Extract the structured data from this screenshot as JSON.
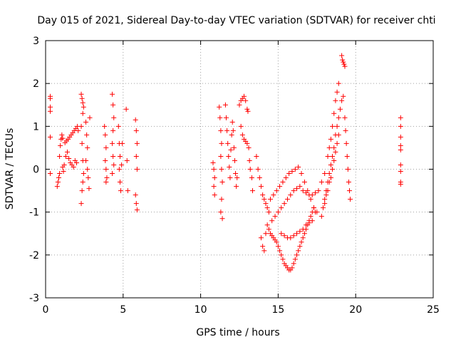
{
  "chart_data": {
    "type": "scatter",
    "title": "Day 015 of 2021, Sidereal Day-to-day VTEC variation (SDTVAR) for receiver chti",
    "xlabel": "GPS time / hours",
    "ylabel": "SDTVAR / TECUs",
    "xlim": [
      0,
      25
    ],
    "ylim": [
      -3,
      3
    ],
    "xticks": [
      0,
      5,
      10,
      15,
      20,
      25
    ],
    "yticks": [
      -3,
      -2,
      -1,
      0,
      1,
      2,
      3
    ],
    "xtick_labels": [
      "0",
      "5",
      "10",
      "15",
      "20",
      "25"
    ],
    "ytick_labels": [
      "-3",
      "-2",
      "-1",
      "0",
      "1",
      "2",
      "3"
    ],
    "grid": true,
    "marker": "+",
    "color": "#ff0000",
    "series": [
      {
        "name": "SDTVAR",
        "points": [
          [
            0.3,
            1.7
          ],
          [
            0.3,
            1.65
          ],
          [
            0.3,
            1.45
          ],
          [
            0.3,
            1.35
          ],
          [
            0.3,
            0.75
          ],
          [
            0.3,
            -0.1
          ],
          [
            0.75,
            -0.4
          ],
          [
            0.8,
            -0.3
          ],
          [
            0.85,
            -0.2
          ],
          [
            0.9,
            -0.1
          ],
          [
            0.9,
            0.3
          ],
          [
            0.95,
            0.55
          ],
          [
            1.0,
            0.7
          ],
          [
            1.05,
            0.8
          ],
          [
            1.1,
            0.72
          ],
          [
            1.1,
            0.05
          ],
          [
            1.15,
            -0.05
          ],
          [
            1.2,
            0.1
          ],
          [
            1.25,
            0.62
          ],
          [
            1.3,
            0.3
          ],
          [
            1.35,
            0.66
          ],
          [
            1.4,
            0.4
          ],
          [
            1.45,
            0.7
          ],
          [
            1.5,
            0.25
          ],
          [
            1.55,
            0.75
          ],
          [
            1.6,
            0.15
          ],
          [
            1.65,
            0.8
          ],
          [
            1.7,
            0.1
          ],
          [
            1.75,
            0.85
          ],
          [
            1.8,
            0.05
          ],
          [
            1.85,
            0.9
          ],
          [
            1.9,
            0.2
          ],
          [
            1.95,
            0.95
          ],
          [
            2.0,
            0.15
          ],
          [
            2.05,
            1.0
          ],
          [
            2.1,
            0.9
          ],
          [
            2.3,
            1.75
          ],
          [
            2.35,
            1.65
          ],
          [
            2.4,
            1.55
          ],
          [
            2.45,
            1.45
          ],
          [
            2.4,
            1.3
          ],
          [
            2.3,
            1.0
          ],
          [
            2.35,
            0.6
          ],
          [
            2.4,
            0.2
          ],
          [
            2.45,
            -0.1
          ],
          [
            2.4,
            -0.3
          ],
          [
            2.35,
            -0.5
          ],
          [
            2.3,
            -0.8
          ],
          [
            2.6,
            1.1
          ],
          [
            2.65,
            0.8
          ],
          [
            2.7,
            0.5
          ],
          [
            2.6,
            0.2
          ],
          [
            2.7,
            0.0
          ],
          [
            2.75,
            -0.2
          ],
          [
            2.8,
            -0.45
          ],
          [
            2.85,
            1.2
          ],
          [
            3.8,
            1.0
          ],
          [
            3.85,
            0.8
          ],
          [
            3.9,
            0.5
          ],
          [
            3.85,
            0.2
          ],
          [
            3.9,
            0.0
          ],
          [
            3.95,
            -0.2
          ],
          [
            3.9,
            -0.3
          ],
          [
            4.3,
            1.75
          ],
          [
            4.35,
            1.5
          ],
          [
            4.4,
            1.2
          ],
          [
            4.35,
            0.9
          ],
          [
            4.3,
            0.6
          ],
          [
            4.35,
            0.3
          ],
          [
            4.4,
            0.1
          ],
          [
            4.3,
            -0.1
          ],
          [
            4.7,
            1.0
          ],
          [
            4.75,
            0.6
          ],
          [
            4.8,
            0.3
          ],
          [
            4.75,
            0.0
          ],
          [
            4.8,
            -0.3
          ],
          [
            4.85,
            -0.5
          ],
          [
            4.9,
            0.1
          ],
          [
            4.95,
            0.6
          ],
          [
            5.2,
            1.4
          ],
          [
            5.25,
            0.2
          ],
          [
            5.3,
            -0.5
          ],
          [
            5.8,
            1.15
          ],
          [
            5.85,
            0.9
          ],
          [
            5.9,
            0.6
          ],
          [
            5.85,
            0.3
          ],
          [
            5.9,
            0.0
          ],
          [
            5.8,
            -0.6
          ],
          [
            5.85,
            -0.8
          ],
          [
            5.9,
            -0.95
          ],
          [
            10.8,
            0.15
          ],
          [
            10.85,
            0.0
          ],
          [
            10.9,
            -0.2
          ],
          [
            10.85,
            -0.4
          ],
          [
            10.9,
            -0.6
          ],
          [
            11.2,
            1.45
          ],
          [
            11.25,
            1.2
          ],
          [
            11.3,
            0.9
          ],
          [
            11.35,
            0.6
          ],
          [
            11.3,
            0.3
          ],
          [
            11.35,
            0.0
          ],
          [
            11.4,
            -0.3
          ],
          [
            11.35,
            -0.7
          ],
          [
            11.3,
            -1.0
          ],
          [
            11.4,
            -1.15
          ],
          [
            11.6,
            1.5
          ],
          [
            11.65,
            1.2
          ],
          [
            11.7,
            0.9
          ],
          [
            11.75,
            0.6
          ],
          [
            11.8,
            0.3
          ],
          [
            11.85,
            0.05
          ],
          [
            11.9,
            -0.2
          ],
          [
            11.95,
            0.45
          ],
          [
            12.0,
            0.8
          ],
          [
            12.05,
            1.1
          ],
          [
            12.1,
            0.9
          ],
          [
            12.15,
            0.5
          ],
          [
            12.2,
            0.2
          ],
          [
            12.25,
            -0.1
          ],
          [
            12.3,
            -0.4
          ],
          [
            12.35,
            -0.2
          ],
          [
            12.5,
            1.5
          ],
          [
            12.6,
            1.6
          ],
          [
            12.7,
            1.65
          ],
          [
            12.8,
            1.7
          ],
          [
            12.9,
            1.6
          ],
          [
            13.0,
            1.4
          ],
          [
            13.05,
            1.35
          ],
          [
            12.6,
            1.0
          ],
          [
            12.7,
            0.8
          ],
          [
            12.8,
            0.7
          ],
          [
            12.9,
            0.65
          ],
          [
            13.0,
            0.6
          ],
          [
            13.1,
            0.5
          ],
          [
            13.15,
            0.2
          ],
          [
            13.2,
            0.0
          ],
          [
            13.3,
            -0.2
          ],
          [
            13.35,
            -0.5
          ],
          [
            13.6,
            0.3
          ],
          [
            13.7,
            0.0
          ],
          [
            13.8,
            -0.2
          ],
          [
            13.9,
            -0.4
          ],
          [
            14.0,
            -0.6
          ],
          [
            14.1,
            -0.7
          ],
          [
            14.2,
            -0.8
          ],
          [
            14.3,
            -0.9
          ],
          [
            14.4,
            -1.0
          ],
          [
            13.9,
            -1.6
          ],
          [
            14.0,
            -1.8
          ],
          [
            14.1,
            -1.9
          ],
          [
            14.2,
            -1.5
          ],
          [
            14.3,
            -1.3
          ],
          [
            14.4,
            -1.4
          ],
          [
            14.5,
            -1.5
          ],
          [
            14.6,
            -1.55
          ],
          [
            14.7,
            -1.6
          ],
          [
            14.8,
            -1.65
          ],
          [
            14.9,
            -1.7
          ],
          [
            15.0,
            -1.8
          ],
          [
            15.1,
            -1.9
          ],
          [
            15.2,
            -2.0
          ],
          [
            15.3,
            -2.1
          ],
          [
            15.4,
            -2.2
          ],
          [
            15.5,
            -2.25
          ],
          [
            15.6,
            -2.3
          ],
          [
            15.7,
            -2.35
          ],
          [
            15.8,
            -2.35
          ],
          [
            15.9,
            -2.3
          ],
          [
            16.0,
            -2.2
          ],
          [
            16.1,
            -2.1
          ],
          [
            16.2,
            -2.0
          ],
          [
            16.3,
            -1.9
          ],
          [
            16.4,
            -1.8
          ],
          [
            16.5,
            -1.7
          ],
          [
            16.6,
            -1.6
          ],
          [
            16.7,
            -1.5
          ],
          [
            16.8,
            -1.4
          ],
          [
            16.9,
            -1.3
          ],
          [
            17.0,
            -1.2
          ],
          [
            17.1,
            -1.1
          ],
          [
            17.2,
            -1.0
          ],
          [
            17.3,
            -0.9
          ],
          [
            15.2,
            -1.5
          ],
          [
            15.4,
            -1.55
          ],
          [
            15.6,
            -1.6
          ],
          [
            15.8,
            -1.6
          ],
          [
            16.0,
            -1.55
          ],
          [
            16.2,
            -1.5
          ],
          [
            16.4,
            -1.45
          ],
          [
            16.6,
            -1.4
          ],
          [
            16.8,
            -1.3
          ],
          [
            17.0,
            -1.25
          ],
          [
            17.2,
            -1.2
          ],
          [
            17.4,
            -1.0
          ],
          [
            14.5,
            -0.7
          ],
          [
            14.7,
            -0.6
          ],
          [
            14.9,
            -0.5
          ],
          [
            15.1,
            -0.4
          ],
          [
            15.3,
            -0.3
          ],
          [
            15.5,
            -0.2
          ],
          [
            15.7,
            -0.1
          ],
          [
            15.9,
            -0.05
          ],
          [
            16.1,
            0.0
          ],
          [
            16.3,
            0.05
          ],
          [
            16.5,
            -0.1
          ],
          [
            16.7,
            -0.3
          ],
          [
            16.9,
            -0.5
          ],
          [
            17.1,
            -0.7
          ],
          [
            17.3,
            -0.9
          ],
          [
            17.5,
            -1.0
          ],
          [
            14.6,
            -1.2
          ],
          [
            14.8,
            -1.1
          ],
          [
            15.0,
            -1.0
          ],
          [
            15.2,
            -0.9
          ],
          [
            15.4,
            -0.8
          ],
          [
            15.6,
            -0.7
          ],
          [
            15.8,
            -0.6
          ],
          [
            16.0,
            -0.5
          ],
          [
            16.2,
            -0.45
          ],
          [
            16.4,
            -0.4
          ],
          [
            16.6,
            -0.5
          ],
          [
            16.8,
            -0.55
          ],
          [
            17.0,
            -0.6
          ],
          [
            17.2,
            -0.6
          ],
          [
            17.4,
            -0.55
          ],
          [
            17.6,
            -0.5
          ],
          [
            17.8,
            -0.3
          ],
          [
            18.0,
            -0.1
          ],
          [
            17.8,
            -1.1
          ],
          [
            17.9,
            -0.9
          ],
          [
            18.0,
            -0.7
          ],
          [
            18.1,
            -0.5
          ],
          [
            18.2,
            -0.3
          ],
          [
            18.3,
            -0.1
          ],
          [
            18.4,
            0.1
          ],
          [
            18.5,
            0.3
          ],
          [
            18.6,
            0.5
          ],
          [
            18.7,
            0.8
          ],
          [
            18.8,
            1.0
          ],
          [
            18.9,
            1.2
          ],
          [
            19.0,
            1.4
          ],
          [
            19.1,
            1.6
          ],
          [
            19.2,
            1.7
          ],
          [
            18.0,
            -0.8
          ],
          [
            18.1,
            -0.6
          ],
          [
            18.2,
            -0.5
          ],
          [
            18.3,
            -0.3
          ],
          [
            18.4,
            -0.2
          ],
          [
            18.5,
            0.0
          ],
          [
            18.6,
            0.2
          ],
          [
            18.7,
            0.4
          ],
          [
            18.8,
            0.6
          ],
          [
            18.9,
            0.8
          ],
          [
            18.2,
            0.3
          ],
          [
            18.3,
            0.5
          ],
          [
            18.4,
            0.7
          ],
          [
            18.5,
            1.0
          ],
          [
            18.6,
            1.3
          ],
          [
            18.7,
            1.6
          ],
          [
            18.8,
            1.8
          ],
          [
            18.9,
            2.0
          ],
          [
            19.1,
            2.65
          ],
          [
            19.15,
            2.55
          ],
          [
            19.2,
            2.5
          ],
          [
            19.25,
            2.45
          ],
          [
            19.3,
            2.4
          ],
          [
            19.3,
            1.2
          ],
          [
            19.35,
            0.9
          ],
          [
            19.4,
            0.6
          ],
          [
            19.45,
            0.3
          ],
          [
            19.5,
            0.0
          ],
          [
            19.55,
            -0.3
          ],
          [
            19.6,
            -0.5
          ],
          [
            19.65,
            -0.7
          ],
          [
            22.9,
            1.2
          ],
          [
            22.9,
            1.0
          ],
          [
            22.9,
            0.75
          ],
          [
            22.9,
            0.55
          ],
          [
            22.9,
            0.45
          ],
          [
            22.9,
            0.1
          ],
          [
            22.9,
            -0.05
          ],
          [
            22.9,
            -0.3
          ],
          [
            22.9,
            -0.35
          ]
        ]
      }
    ]
  }
}
